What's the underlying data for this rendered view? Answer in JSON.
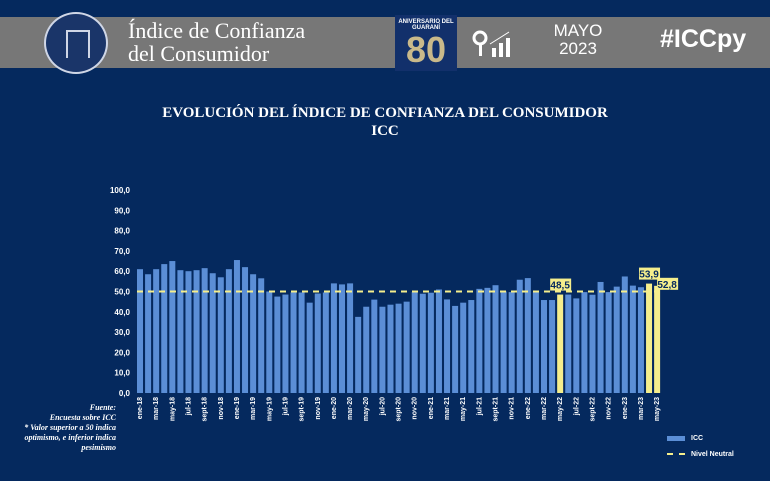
{
  "header": {
    "title_line1": "Índice de Confianza",
    "title_line2": "del Consumidor",
    "anniversary_top": "ANIVERSARIO DEL GUARANÍ",
    "anniversary_number": "80",
    "month": "MAYO",
    "year": "2023",
    "hashtag": "#ICCpy"
  },
  "source": {
    "label": "Fuente:",
    "text": "Encuesta sobre ICC",
    "note": "* Valor superior a 50 indica optimismo, e inferior indica pesimismo"
  },
  "chart_data": {
    "type": "bar",
    "title": "EVOLUCIÓN DEL ÍNDICE DE CONFIANZA DEL CONSUMIDOR",
    "subtitle": "ICC",
    "ylim": [
      0,
      100
    ],
    "yticks": [
      "0,0",
      "10,0",
      "20,0",
      "30,0",
      "40,0",
      "50,0",
      "60,0",
      "70,0",
      "80,0",
      "90,0",
      "100,0"
    ],
    "categories": [
      "ene-18",
      "feb-18",
      "mar-18",
      "abr-18",
      "may-18",
      "jun-18",
      "jul-18",
      "ago-18",
      "sept-18",
      "oct-18",
      "nov-18",
      "dic-18",
      "ene-19",
      "feb-19",
      "mar-19",
      "abr-19",
      "may-19",
      "jun-19",
      "jul-19",
      "ago-19",
      "sept-19",
      "oct-19",
      "nov-19",
      "dic-19",
      "ene-20",
      "feb-20",
      "mar-20",
      "abr-20",
      "may-20",
      "jun-20",
      "jul-20",
      "ago-20",
      "sept-20",
      "oct-20",
      "nov-20",
      "dic-20",
      "ene-21",
      "feb-21",
      "mar-21",
      "abr-21",
      "may-21",
      "jun-21",
      "jul-21",
      "ago-21",
      "sept-21",
      "oct-21",
      "nov-21",
      "dic-21",
      "ene-22",
      "feb-22",
      "mar-22",
      "abr-22",
      "may-22",
      "jun-22",
      "jul-22",
      "ago-22",
      "sept-22",
      "oct-22",
      "nov-22",
      "dic-22",
      "ene-23",
      "feb-23",
      "mar-23",
      "abr-23",
      "may-23"
    ],
    "series": [
      {
        "name": "ICC",
        "color": "#5b8ed6",
        "values": [
          61,
          58.5,
          61,
          63.5,
          65,
          60.5,
          60,
          60.5,
          61.5,
          59,
          57,
          61,
          65.5,
          62,
          58.5,
          56.5,
          50,
          47.5,
          48.5,
          49.5,
          49.5,
          44.5,
          49,
          49.5,
          54,
          53.5,
          54,
          37.5,
          42.5,
          46,
          42.5,
          43.5,
          44,
          45,
          49.7,
          48.9,
          49.4,
          51,
          46.1,
          42.9,
          44.5,
          45.8,
          51.3,
          51.8,
          53.1,
          50,
          49.7,
          55.8,
          56.6,
          49.7,
          45.8,
          45.8,
          48.5,
          48.5,
          46.6,
          49.7,
          48.4,
          54.7,
          49.7,
          52.4,
          57.4,
          52.9,
          52.1,
          53.9,
          52.8
        ]
      }
    ],
    "highlighted": [
      {
        "category": "may-22",
        "label": "48,5"
      },
      {
        "category": "abr-23",
        "label": "53,9"
      },
      {
        "category": "may-23",
        "label": "52,8"
      }
    ],
    "highlight_color": "#f5ee8c",
    "reference_line": {
      "name": "Nivel Neutral",
      "value": 50,
      "color": "#f5ee8c"
    },
    "legend": [
      "ICC",
      "Nivel Neutral"
    ],
    "legend_position": "bottom-right"
  }
}
